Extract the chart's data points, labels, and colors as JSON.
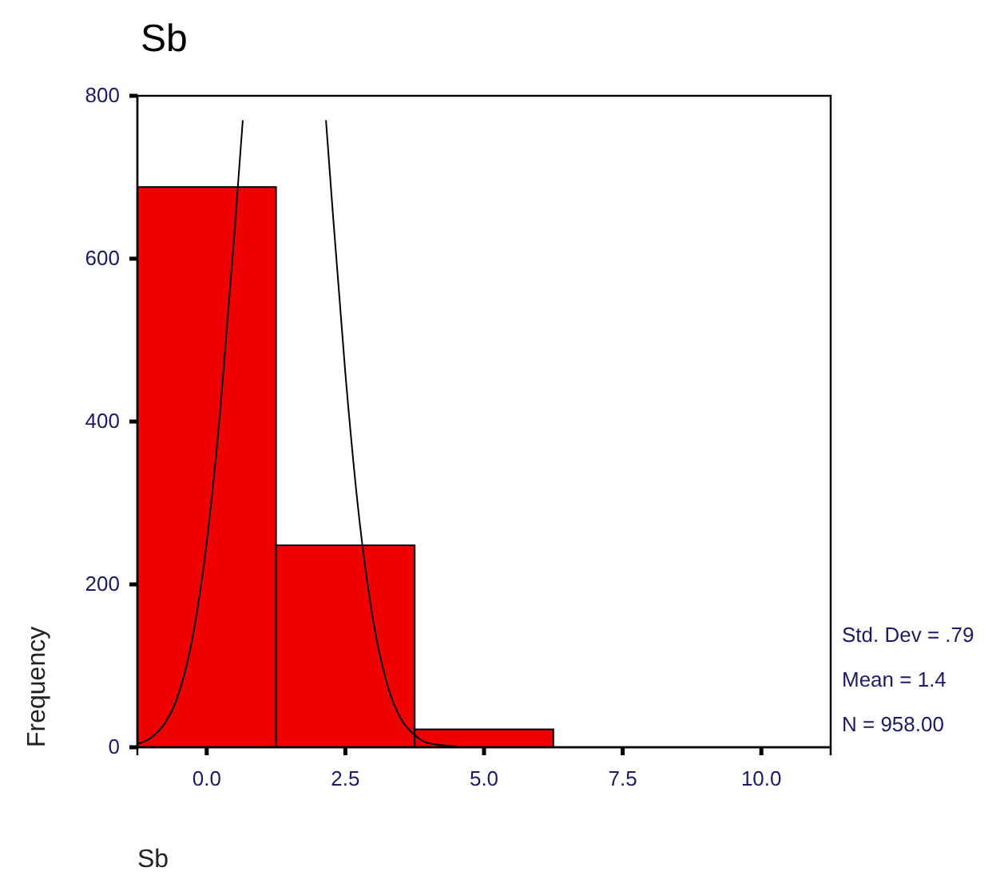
{
  "chart_data": {
    "type": "histogram",
    "title": "Sb",
    "xlabel": "Sb",
    "ylabel": "Frequency",
    "bins": [
      -1.25,
      1.25,
      3.75,
      6.25
    ],
    "values": [
      688,
      248,
      22
    ],
    "color": "#f20000",
    "xlim": [
      -1.25,
      11.25
    ],
    "xticks": [
      {
        "value": 0,
        "label": "0.0"
      },
      {
        "value": 2.5,
        "label": "2.5"
      },
      {
        "value": 5,
        "label": "5.0"
      },
      {
        "value": 7.5,
        "label": "7.5"
      },
      {
        "value": 10,
        "label": "10.0"
      }
    ],
    "ylim": [
      0,
      800
    ],
    "yticks": [
      0,
      200,
      400,
      600,
      800
    ],
    "grid": false,
    "series": [
      {
        "type": "line",
        "color": "#000000",
        "x": [
          -1.25,
          -1,
          -0.75,
          -0.5,
          -0.25,
          0,
          0.25,
          0.5,
          0.65,
          1.4,
          2.15,
          2.25,
          2.5,
          2.75,
          3,
          3.25,
          3.5,
          3.75,
          4,
          4.5
        ],
        "values": [
          4,
          12,
          30,
          67,
          137,
          252,
          419,
          632,
          770,
          null,
          770,
          678,
          459,
          281,
          156,
          78,
          35,
          15,
          5,
          1
        ]
      }
    ],
    "annotations": [
      "Std. Dev = .79",
      "Mean = 1.4",
      "N = 958.00"
    ]
  }
}
